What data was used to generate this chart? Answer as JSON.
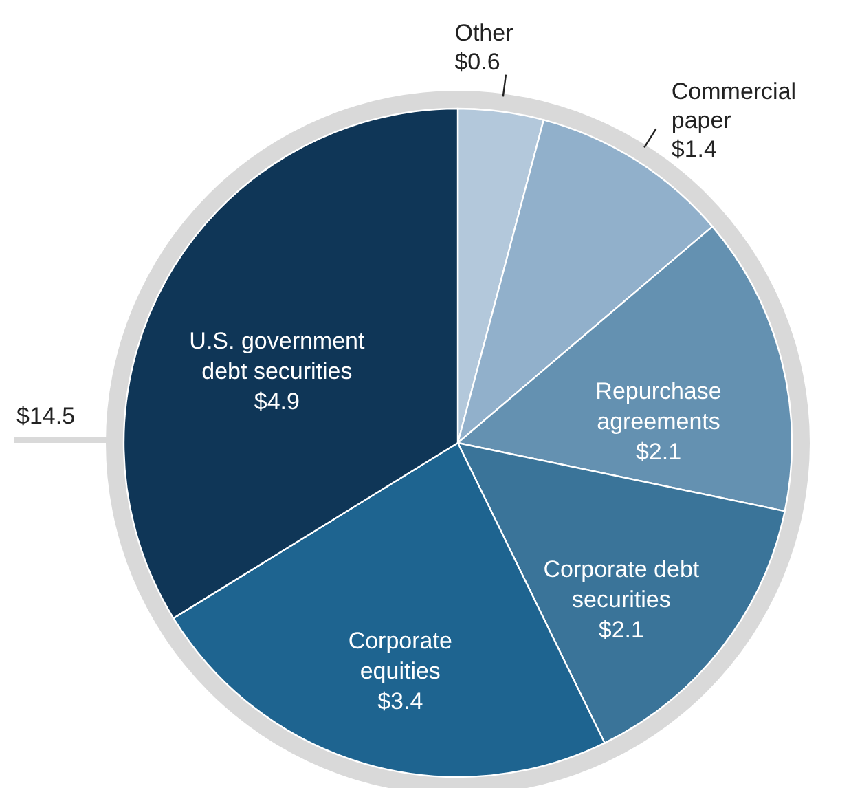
{
  "chart_data": {
    "type": "pie",
    "categories": [
      "Other",
      "Commercial paper",
      "Repurchase agreements",
      "Corporate debt securities",
      "Corporate equities",
      "U.S. government debt securities"
    ],
    "values": [
      0.6,
      1.4,
      2.1,
      2.1,
      3.4,
      4.9
    ],
    "colors": [
      "#b3c8db",
      "#91b0cb",
      "#6491b1",
      "#3a7499",
      "#1e6490",
      "#0f3657"
    ],
    "value_labels": [
      "$0.6",
      "$1.4",
      "$2.1",
      "$2.1",
      "$3.4",
      "$4.9"
    ],
    "annotations": [
      "$14.5"
    ]
  }
}
